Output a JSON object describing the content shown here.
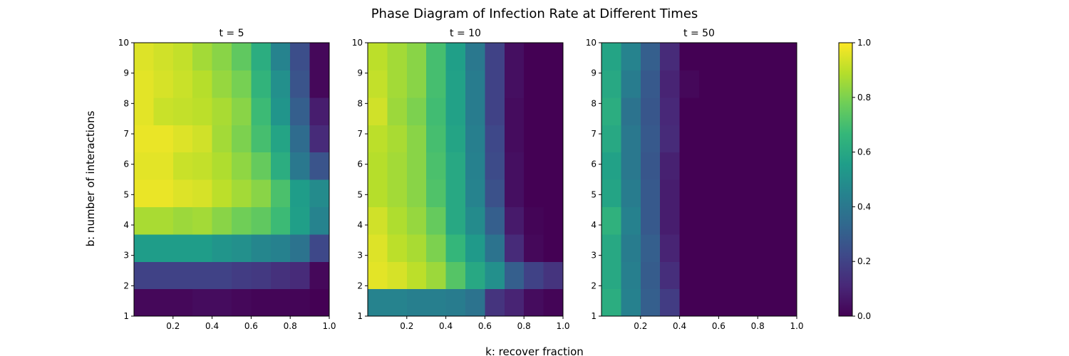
{
  "figure": {
    "suptitle": "Phase Diagram of Infection Rate at Different Times",
    "xlabel": "k: recover fraction",
    "ylabel": "b: number of interactions"
  },
  "colormap": {
    "name": "viridis",
    "stops": [
      "#440154",
      "#482878",
      "#3e4989",
      "#31688e",
      "#26828e",
      "#1f9e89",
      "#35b779",
      "#6ece58",
      "#b5de2b",
      "#fde725"
    ],
    "range": [
      0,
      1
    ],
    "ticks": [
      "0.0",
      "0.2",
      "0.4",
      "0.6",
      "0.8",
      "1.0"
    ]
  },
  "chart_data": [
    {
      "type": "heatmap",
      "title": "t = 5",
      "xlim": [
        0,
        1
      ],
      "ylim": [
        1,
        10
      ],
      "xticks": [
        "0.2",
        "0.4",
        "0.6",
        "0.8",
        "1.0"
      ],
      "yticks": [
        "1",
        "2",
        "3",
        "4",
        "5",
        "6",
        "7",
        "8",
        "9",
        "10"
      ],
      "x_bins": 10,
      "y_bins": 10,
      "values": [
        [
          0.02,
          0.02,
          0.02,
          0.03,
          0.03,
          0.02,
          0.01,
          0.01,
          0.01,
          0.0
        ],
        [
          0.2,
          0.2,
          0.2,
          0.2,
          0.2,
          0.18,
          0.17,
          0.14,
          0.12,
          0.02
        ],
        [
          0.55,
          0.55,
          0.55,
          0.55,
          0.52,
          0.5,
          0.46,
          0.44,
          0.38,
          0.22
        ],
        [
          0.87,
          0.87,
          0.85,
          0.86,
          0.82,
          0.78,
          0.75,
          0.68,
          0.56,
          0.45
        ],
        [
          0.97,
          0.97,
          0.95,
          0.94,
          0.9,
          0.86,
          0.82,
          0.71,
          0.55,
          0.48
        ],
        [
          0.96,
          0.96,
          0.92,
          0.91,
          0.88,
          0.83,
          0.76,
          0.62,
          0.4,
          0.26
        ],
        [
          0.97,
          0.97,
          0.95,
          0.93,
          0.86,
          0.8,
          0.7,
          0.58,
          0.35,
          0.12
        ],
        [
          0.96,
          0.92,
          0.91,
          0.9,
          0.87,
          0.82,
          0.68,
          0.52,
          0.3,
          0.08
        ],
        [
          0.96,
          0.94,
          0.92,
          0.89,
          0.84,
          0.79,
          0.65,
          0.5,
          0.26,
          0.02
        ],
        [
          0.95,
          0.93,
          0.91,
          0.86,
          0.82,
          0.75,
          0.62,
          0.45,
          0.24,
          0.02
        ]
      ]
    },
    {
      "type": "heatmap",
      "title": "t = 10",
      "xlim": [
        0,
        1
      ],
      "ylim": [
        1,
        10
      ],
      "xticks": [
        "0.2",
        "0.4",
        "0.6",
        "0.8",
        "1.0"
      ],
      "yticks": [
        "1",
        "2",
        "3",
        "4",
        "5",
        "6",
        "7",
        "8",
        "9",
        "10"
      ],
      "x_bins": 10,
      "y_bins": 10,
      "values": [
        [
          0.45,
          0.45,
          0.43,
          0.43,
          0.42,
          0.38,
          0.15,
          0.1,
          0.03,
          0.01
        ],
        [
          0.96,
          0.94,
          0.9,
          0.85,
          0.73,
          0.6,
          0.5,
          0.3,
          0.2,
          0.15
        ],
        [
          0.95,
          0.9,
          0.87,
          0.8,
          0.66,
          0.54,
          0.38,
          0.12,
          0.02,
          0.0
        ],
        [
          0.93,
          0.88,
          0.84,
          0.76,
          0.6,
          0.48,
          0.3,
          0.07,
          0.01,
          0.0
        ],
        [
          0.89,
          0.86,
          0.82,
          0.72,
          0.6,
          0.45,
          0.25,
          0.04,
          0.0,
          0.0
        ],
        [
          0.89,
          0.86,
          0.82,
          0.71,
          0.6,
          0.44,
          0.23,
          0.04,
          0.0,
          0.0
        ],
        [
          0.9,
          0.87,
          0.82,
          0.7,
          0.58,
          0.43,
          0.22,
          0.03,
          0.0,
          0.0
        ],
        [
          0.93,
          0.85,
          0.8,
          0.69,
          0.57,
          0.42,
          0.2,
          0.03,
          0.0,
          0.0
        ],
        [
          0.91,
          0.86,
          0.82,
          0.7,
          0.57,
          0.42,
          0.2,
          0.04,
          0.0,
          0.0
        ],
        [
          0.9,
          0.86,
          0.82,
          0.7,
          0.56,
          0.4,
          0.2,
          0.04,
          0.0,
          0.0
        ]
      ]
    },
    {
      "type": "heatmap",
      "title": "t = 50",
      "xlim": [
        0,
        1
      ],
      "ylim": [
        1,
        10
      ],
      "xticks": [
        "0.2",
        "0.4",
        "0.6",
        "0.8",
        "1.0"
      ],
      "yticks": [
        "1",
        "2",
        "3",
        "4",
        "5",
        "6",
        "7",
        "8",
        "9",
        "10"
      ],
      "x_bins": 10,
      "y_bins": 10,
      "values": [
        [
          0.62,
          0.44,
          0.3,
          0.18,
          0.0,
          0.0,
          0.0,
          0.0,
          0.0,
          0.0
        ],
        [
          0.6,
          0.43,
          0.29,
          0.13,
          0.0,
          0.0,
          0.0,
          0.0,
          0.0,
          0.0
        ],
        [
          0.6,
          0.42,
          0.3,
          0.1,
          0.0,
          0.0,
          0.0,
          0.0,
          0.0,
          0.0
        ],
        [
          0.64,
          0.44,
          0.28,
          0.08,
          0.0,
          0.0,
          0.0,
          0.0,
          0.0,
          0.0
        ],
        [
          0.58,
          0.42,
          0.28,
          0.08,
          0.0,
          0.0,
          0.0,
          0.0,
          0.0,
          0.0
        ],
        [
          0.57,
          0.4,
          0.27,
          0.09,
          0.0,
          0.0,
          0.0,
          0.0,
          0.0,
          0.0
        ],
        [
          0.6,
          0.4,
          0.28,
          0.12,
          0.0,
          0.0,
          0.0,
          0.0,
          0.0,
          0.0
        ],
        [
          0.62,
          0.38,
          0.27,
          0.11,
          0.0,
          0.0,
          0.0,
          0.0,
          0.0,
          0.0
        ],
        [
          0.6,
          0.42,
          0.28,
          0.1,
          0.02,
          0.0,
          0.0,
          0.0,
          0.0,
          0.0
        ],
        [
          0.58,
          0.45,
          0.3,
          0.12,
          0.0,
          0.0,
          0.0,
          0.0,
          0.0,
          0.0
        ]
      ]
    }
  ]
}
